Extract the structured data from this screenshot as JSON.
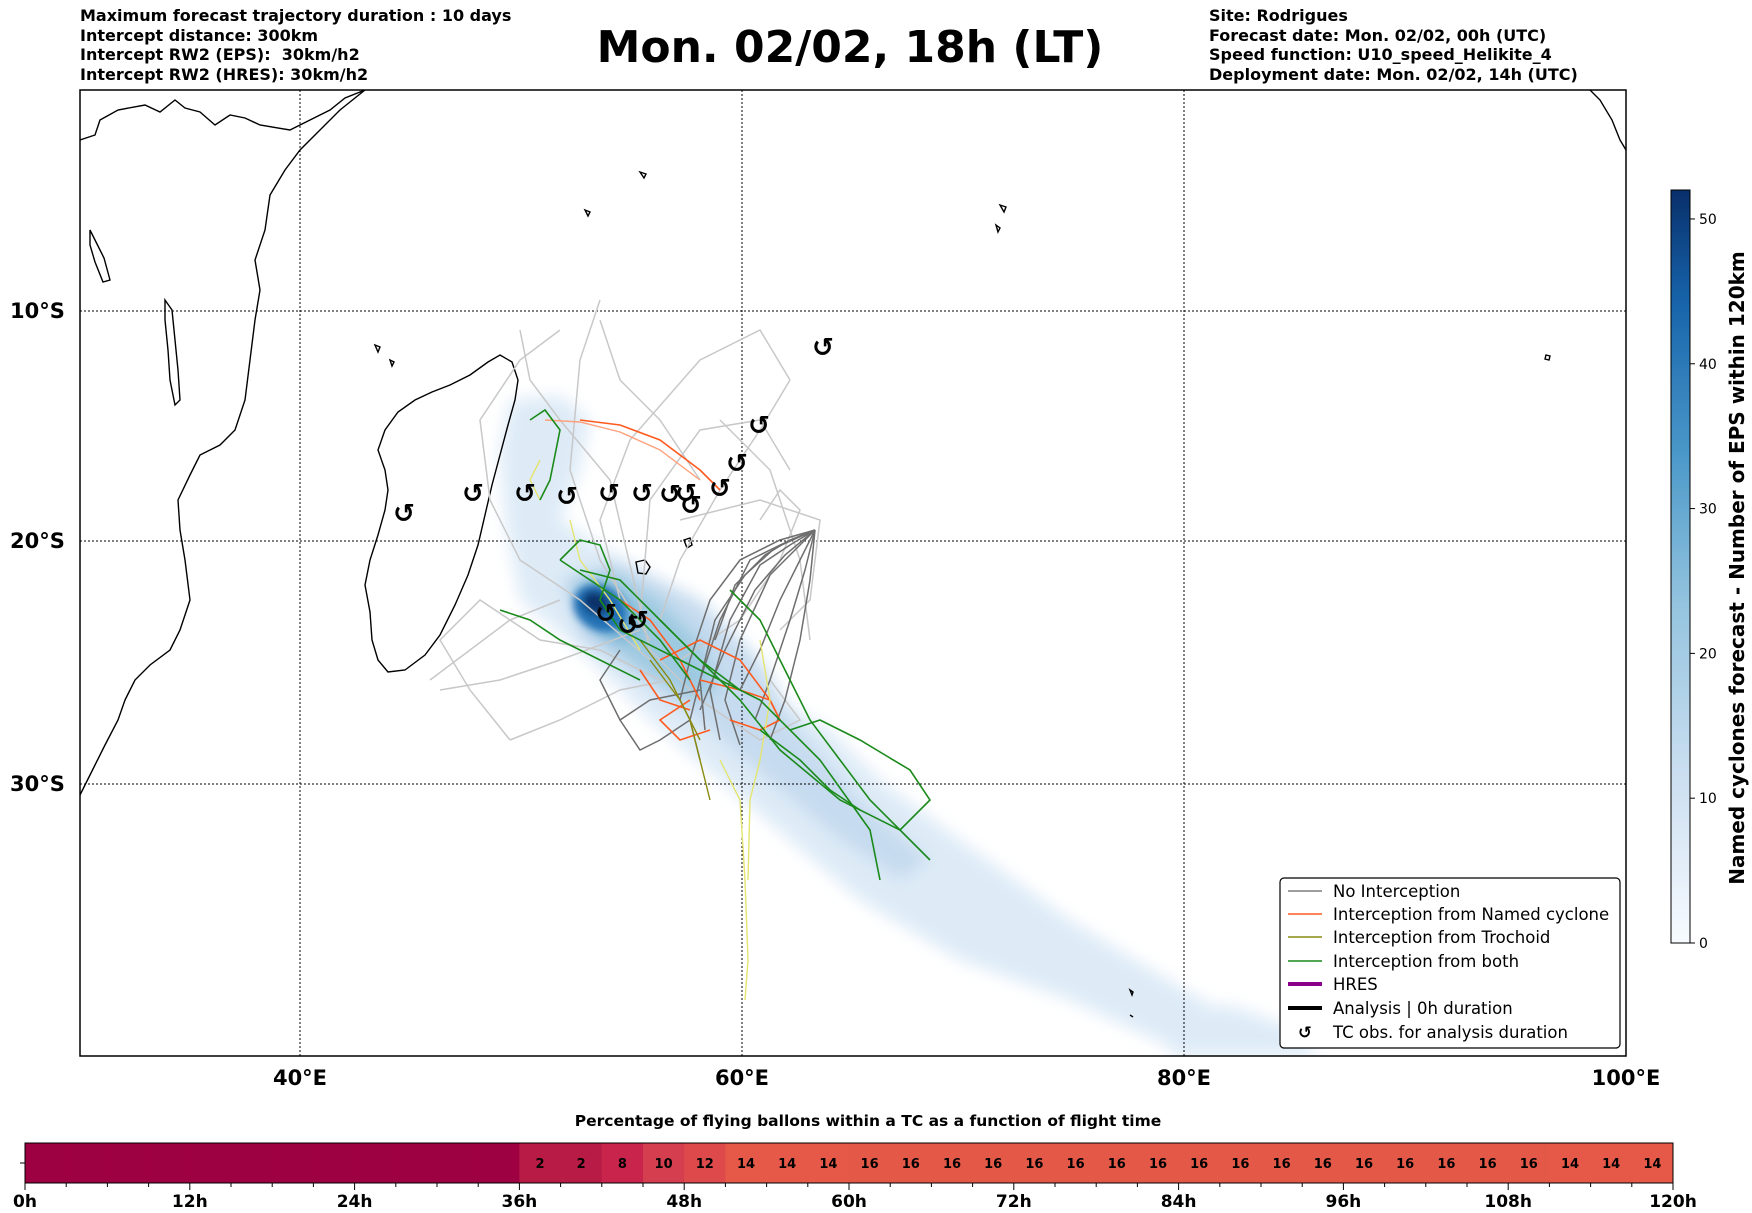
{
  "header_left": {
    "line1": "Maximum forecast trajectory duration : 10 days",
    "line2": "Intercept distance: 300km",
    "line3": "Intercept RW2 (EPS):  30km/h2",
    "line4": "Intercept RW2 (HRES): 30km/h2"
  },
  "title": "Mon. 02/02, 18h (LT)",
  "header_right": {
    "line1": "Site: Rodrigues",
    "line2": "Forecast date: Mon. 02/02, 00h (UTC)",
    "line3": "Speed function: U10_speed_Helikite_4",
    "line4": "Deployment date: Mon. 02/02, 14h (UTC)"
  },
  "map": {
    "lat_labels": [
      "10°S",
      "20°S",
      "30°S"
    ],
    "lon_labels": [
      "40°E",
      "60°E",
      "80°E",
      "100°E"
    ]
  },
  "legend": {
    "items": [
      {
        "label": "No Interception",
        "color": "#7f7f7f"
      },
      {
        "label": "Interception from Named cyclone",
        "color": "#ff5a1e"
      },
      {
        "label": "Interception from Trochoid",
        "color": "#8a8a10"
      },
      {
        "label": "Interception from both",
        "color": "#1a8a1a"
      },
      {
        "label": "HRES",
        "color": "#8b008b"
      },
      {
        "label": "Analysis | 0h duration",
        "color": "#000000"
      },
      {
        "label": "TC obs. for analysis duration",
        "color": "#000000"
      }
    ],
    "tc_symbol": "↺"
  },
  "colorbar": {
    "title": "Named cyclones forecast - Number of EPS within 120km",
    "ticks": [
      0,
      10,
      20,
      30,
      40,
      50
    ],
    "max": 52,
    "color_low": "#f7fbff",
    "color_high": "#08306b"
  },
  "flight_bar": {
    "title": "Percentage of flying ballons within a TC as a function of flight time",
    "hour_labels": [
      "0h",
      "12h",
      "24h",
      "36h",
      "48h",
      "60h",
      "72h",
      "84h",
      "96h",
      "108h",
      "120h"
    ],
    "segment_hours": 3,
    "values": [
      null,
      null,
      null,
      null,
      null,
      null,
      null,
      null,
      null,
      null,
      null,
      null,
      2,
      2,
      8,
      10,
      12,
      14,
      14,
      14,
      16,
      16,
      16,
      16,
      16,
      16,
      16,
      16,
      16,
      16,
      16,
      16,
      16,
      16,
      16,
      16,
      16,
      14,
      14,
      14
    ],
    "colors": {
      "empty": "#9e0142",
      "2": "#b81c46",
      "8": "#c8244c",
      "10": "#d53e4f",
      "12": "#de4a4c",
      "14": "#e65848",
      "16": "#e45848"
    }
  }
}
